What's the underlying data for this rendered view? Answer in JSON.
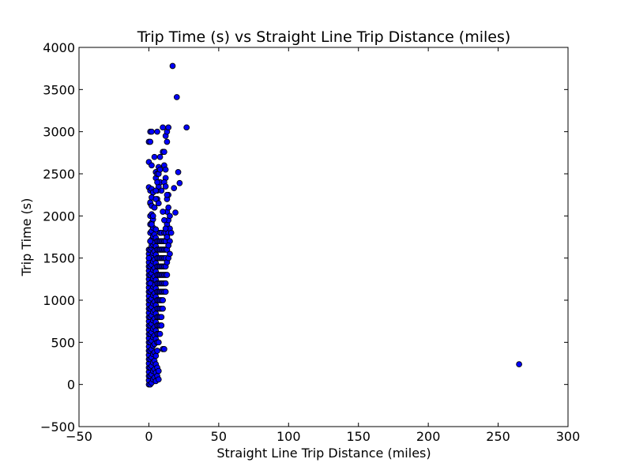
{
  "chart_data": {
    "type": "scatter",
    "title": "Trip Time (s) vs Straight Line Trip Distance (miles)",
    "xlabel": "Straight Line Trip Distance (miles)",
    "ylabel": "Trip Time (s)",
    "xlim": [
      -50,
      300
    ],
    "ylim": [
      -500,
      4000
    ],
    "xticks": [
      -50,
      0,
      50,
      100,
      150,
      200,
      250,
      300
    ],
    "yticks": [
      -500,
      0,
      500,
      1000,
      1500,
      2000,
      2500,
      3000,
      3500,
      4000
    ],
    "xtick_labels": [
      "−50",
      "0",
      "50",
      "100",
      "150",
      "200",
      "250",
      "300"
    ],
    "ytick_labels": [
      "−500",
      "0",
      "500",
      "1000",
      "1500",
      "2000",
      "2500",
      "3000",
      "3500",
      "4000"
    ],
    "grid": false,
    "legend": null,
    "marker_color": "#0000ff",
    "marker_edge_color": "#000000",
    "series": [
      {
        "x": [
          0,
          0,
          0,
          0,
          0,
          0,
          0,
          0,
          0,
          0,
          0,
          0,
          0,
          0,
          0,
          0,
          0,
          0,
          0,
          0,
          0,
          0,
          0,
          0,
          0,
          0,
          0,
          0,
          0,
          0,
          0,
          0,
          0,
          0,
          0,
          0,
          1,
          1,
          1,
          1,
          1,
          1,
          1,
          1,
          1,
          1,
          1,
          1,
          1,
          1,
          1,
          1,
          1,
          1,
          1,
          1,
          1,
          1,
          1,
          1,
          1,
          1,
          2,
          2,
          2,
          2,
          2,
          2,
          2,
          2,
          2,
          2,
          2,
          2,
          2,
          2,
          2,
          2,
          2,
          2,
          2,
          2,
          2,
          2,
          2,
          2,
          2,
          2,
          2,
          3,
          3,
          3,
          3,
          3,
          3,
          3,
          3,
          3,
          3,
          3,
          3,
          3,
          3,
          3,
          3,
          3,
          3,
          3,
          3,
          3,
          4,
          4,
          4,
          4,
          4,
          4,
          4,
          4,
          4,
          4,
          4,
          4,
          4,
          4,
          4,
          4,
          4,
          4,
          4,
          4,
          5,
          5,
          5,
          5,
          5,
          5,
          5,
          5,
          5,
          5,
          5,
          5,
          5,
          5,
          5,
          5,
          5,
          5,
          5,
          6,
          6,
          6,
          6,
          6,
          6,
          6,
          6,
          6,
          6,
          6,
          6,
          6,
          6,
          6,
          6,
          6,
          6,
          7,
          7,
          7,
          7,
          7,
          7,
          7,
          7,
          7,
          7,
          7,
          7,
          7,
          7,
          7,
          7,
          8,
          8,
          8,
          8,
          8,
          8,
          8,
          8,
          8,
          8,
          8,
          8,
          8,
          8,
          8,
          9,
          9,
          9,
          9,
          9,
          9,
          9,
          9,
          9,
          9,
          9,
          9,
          9,
          10,
          10,
          10,
          10,
          10,
          10,
          10,
          10,
          10,
          10,
          10,
          10,
          11,
          11,
          11,
          11,
          11,
          11,
          11,
          11,
          11,
          11,
          11,
          12,
          12,
          12,
          12,
          12,
          12,
          12,
          12,
          12,
          12,
          13,
          13,
          13,
          13,
          13,
          13,
          13,
          13,
          13,
          14,
          14,
          14,
          14,
          14,
          14,
          14,
          15,
          15,
          15,
          15,
          16,
          17,
          18,
          19,
          20,
          21,
          22,
          27,
          1,
          0,
          1,
          2,
          3,
          4,
          5,
          6,
          7,
          8,
          5,
          6,
          7,
          10,
          11,
          12,
          13,
          14,
          12,
          13,
          4,
          5,
          6,
          7,
          8,
          11,
          12,
          265
        ],
        "y": [
          0,
          50,
          100,
          150,
          200,
          250,
          300,
          350,
          400,
          450,
          500,
          550,
          600,
          650,
          700,
          750,
          800,
          850,
          900,
          950,
          1000,
          1050,
          1100,
          1150,
          1200,
          1250,
          1300,
          1350,
          1400,
          1450,
          1500,
          1550,
          1600,
          2640,
          2880,
          2340,
          0,
          100,
          200,
          300,
          400,
          500,
          600,
          700,
          800,
          900,
          1000,
          1100,
          1200,
          1300,
          1400,
          1500,
          1600,
          1700,
          1800,
          1900,
          2000,
          2150,
          2300,
          2880,
          3000,
          2160,
          20,
          120,
          220,
          320,
          420,
          520,
          620,
          720,
          820,
          920,
          1020,
          1120,
          1220,
          1320,
          1420,
          1520,
          1620,
          1720,
          1820,
          1920,
          2020,
          2120,
          2220,
          2320,
          2600,
          3000,
          1650,
          60,
          160,
          260,
          360,
          460,
          560,
          660,
          760,
          860,
          960,
          1060,
          1160,
          1260,
          1360,
          1460,
          1560,
          1660,
          1760,
          1860,
          1960,
          2280,
          80,
          180,
          280,
          380,
          480,
          580,
          680,
          780,
          880,
          980,
          1080,
          1180,
          1280,
          1380,
          1480,
          1580,
          1680,
          1780,
          2100,
          2700,
          40,
          140,
          240,
          340,
          540,
          640,
          740,
          840,
          940,
          1040,
          1140,
          1240,
          1340,
          1440,
          1540,
          1640,
          1740,
          1840,
          2520,
          100,
          200,
          400,
          500,
          600,
          700,
          800,
          900,
          1000,
          1100,
          1200,
          1300,
          1400,
          1500,
          1600,
          1700,
          2200,
          3000,
          60,
          160,
          500,
          600,
          700,
          800,
          900,
          1000,
          1100,
          1200,
          1300,
          1400,
          1500,
          1600,
          1700,
          2580,
          600,
          700,
          800,
          900,
          1000,
          1100,
          1200,
          1300,
          1400,
          1500,
          1600,
          1700,
          1800,
          2400,
          2700,
          700,
          800,
          900,
          1000,
          1100,
          1200,
          1300,
          1400,
          1500,
          1600,
          1700,
          1800,
          2300,
          420,
          900,
          1000,
          1100,
          1200,
          1300,
          1400,
          1500,
          1600,
          1700,
          2760,
          3050,
          420,
          1100,
          1200,
          1300,
          1400,
          1500,
          1600,
          1700,
          1800,
          2600,
          2760,
          1100,
          1200,
          1300,
          1400,
          1500,
          1600,
          1700,
          1800,
          2550,
          2950,
          1300,
          1450,
          1600,
          1750,
          1900,
          2050,
          2200,
          2880,
          3000,
          1500,
          1650,
          1800,
          1950,
          2100,
          2250,
          3050,
          1550,
          1700,
          1850,
          2000,
          1800,
          3780,
          2330,
          2040,
          3410,
          2520,
          2390,
          3050,
          1200,
          1500,
          1700,
          1900,
          2000,
          2100,
          2200,
          2300,
          2350,
          2400,
          2450,
          2500,
          2150,
          2050,
          1950,
          1850,
          1750,
          1650,
          2450,
          2250,
          2100,
          2300,
          2400,
          2500,
          2550,
          2400,
          2350,
          240
        ]
      }
    ]
  }
}
